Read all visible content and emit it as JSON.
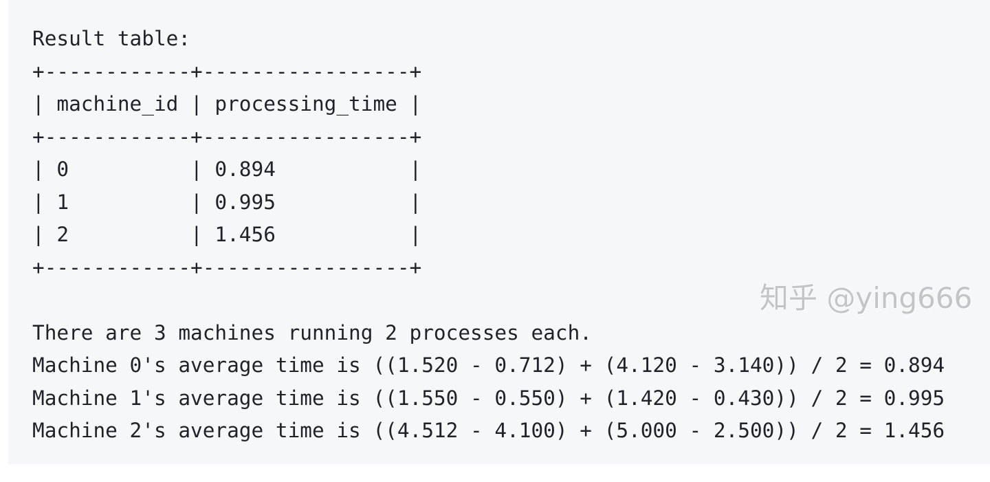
{
  "code_block": {
    "lines": [
      "Result table:",
      "+------------+-----------------+",
      "| machine_id | processing_time |",
      "+------------+-----------------+",
      "| 0          | 0.894           |",
      "| 1          | 0.995           |",
      "| 2          | 1.456           |",
      "+------------+-----------------+",
      "",
      "There are 3 machines running 2 processes each.",
      "Machine 0's average time is ((1.520 - 0.712) + (4.120 - 3.140)) / 2 = 0.894",
      "Machine 1's average time is ((1.550 - 0.550) + (1.420 - 0.430)) / 2 = 0.995",
      "Machine 2's average time is ((4.512 - 4.100) + (5.000 - 2.500)) / 2 = 1.456"
    ]
  },
  "watermark": "知乎 @ying666"
}
